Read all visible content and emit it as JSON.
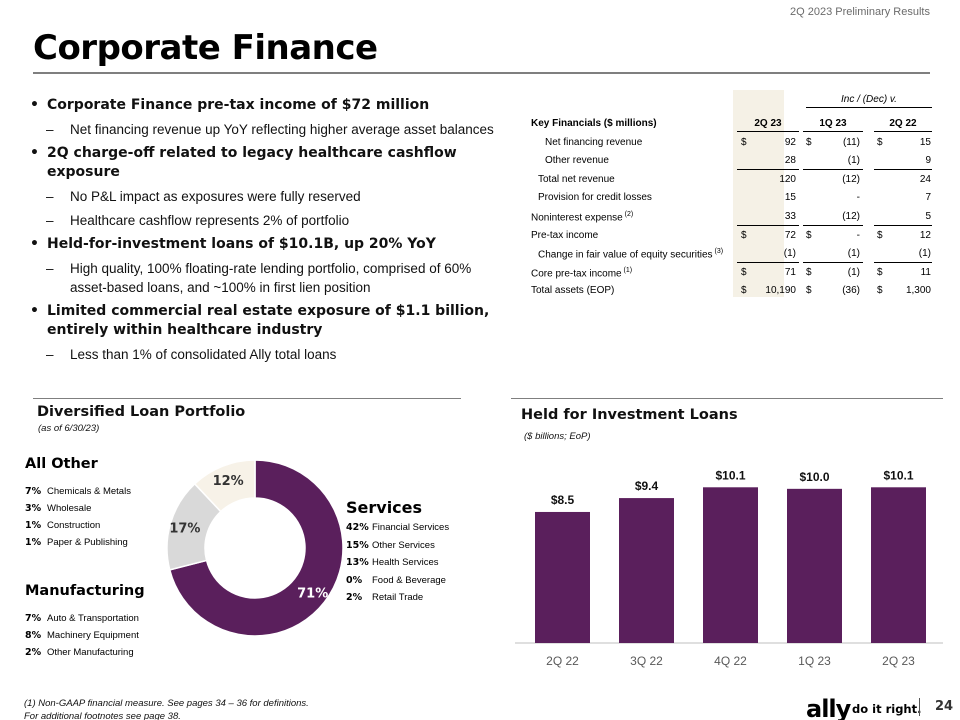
{
  "header": {
    "deck_label": "2Q 2023 Preliminary Results",
    "title": "Corporate Finance"
  },
  "bullets": [
    {
      "level": 1,
      "text": "Corporate Finance pre-tax income of $72 million"
    },
    {
      "level": 2,
      "text": "Net financing revenue up YoY reflecting higher average asset balances"
    },
    {
      "level": 1,
      "text": "2Q charge-off related to legacy healthcare cashflow exposure"
    },
    {
      "level": 2,
      "text": "No P&L impact as exposures were fully reserved"
    },
    {
      "level": 2,
      "text": "Healthcare cashflow represents 2% of portfolio"
    },
    {
      "level": 1,
      "text": "Held-for-investment loans of $10.1B, up 20% YoY"
    },
    {
      "level": 2,
      "text": "High quality, 100% floating-rate lending portfolio, comprised of 60% asset-based loans, and ~100% in first lien position"
    },
    {
      "level": 1,
      "text": "Limited commercial real estate exposure of $1.1 billion, entirely within healthcare industry"
    },
    {
      "level": 2,
      "text": "Less than 1% of consolidated Ally total loans"
    }
  ],
  "table": {
    "inc_dec_label": "Inc / (Dec) v.",
    "header": {
      "label": "Key Financials ($ millions)",
      "cols": [
        "2Q 23",
        "1Q 23",
        "2Q 22"
      ]
    },
    "rows": [
      {
        "label": "Net financing revenue",
        "sup": "",
        "indent": 2,
        "vals": [
          {
            "d": "$",
            "v": "92"
          },
          {
            "d": "$",
            "v": "(11)"
          },
          {
            "d": "$",
            "v": "15"
          }
        ]
      },
      {
        "label": "Other revenue",
        "sup": "",
        "indent": 2,
        "ul": true,
        "vals": [
          {
            "d": "",
            "v": "28"
          },
          {
            "d": "",
            "v": "(1)"
          },
          {
            "d": "",
            "v": "9"
          }
        ]
      },
      {
        "label": "Total net revenue",
        "sup": "",
        "indent": 1,
        "vals": [
          {
            "d": "",
            "v": "120"
          },
          {
            "d": "",
            "v": "(12)"
          },
          {
            "d": "",
            "v": "24"
          }
        ]
      },
      {
        "label": "Provision for credit losses",
        "sup": "",
        "indent": 1,
        "vals": [
          {
            "d": "",
            "v": "15"
          },
          {
            "d": "",
            "v": "-"
          },
          {
            "d": "",
            "v": "7"
          }
        ]
      },
      {
        "label": "Noninterest expense",
        "sup": "(2)",
        "indent": 0,
        "ul": true,
        "vals": [
          {
            "d": "",
            "v": "33"
          },
          {
            "d": "",
            "v": "(12)"
          },
          {
            "d": "",
            "v": "5"
          }
        ]
      },
      {
        "label": "Pre-tax income",
        "sup": "",
        "indent": 0,
        "vals": [
          {
            "d": "$",
            "v": "72"
          },
          {
            "d": "$",
            "v": "-"
          },
          {
            "d": "$",
            "v": "12"
          }
        ]
      },
      {
        "label": "Change in fair value of equity securities",
        "sup": "(3)",
        "indent": 1,
        "ul": true,
        "vals": [
          {
            "d": "",
            "v": "(1)"
          },
          {
            "d": "",
            "v": "(1)"
          },
          {
            "d": "",
            "v": "(1)"
          }
        ]
      },
      {
        "label": "Core pre-tax income",
        "sup": "(1)",
        "indent": 0,
        "vals": [
          {
            "d": "$",
            "v": "71"
          },
          {
            "d": "$",
            "v": "(1)"
          },
          {
            "d": "$",
            "v": "11"
          }
        ]
      },
      {
        "label": "Total assets (EOP)",
        "sup": "",
        "indent": 0,
        "vals": [
          {
            "d": "$",
            "v": "10,190"
          },
          {
            "d": "$",
            "v": "(36)"
          },
          {
            "d": "$",
            "v": "1,300"
          }
        ]
      }
    ]
  },
  "portfolio": {
    "title": "Diversified Loan Portfolio",
    "subtitle": "(as of 6/30/23)",
    "donut_labels": [
      "71%",
      "17%",
      "12%"
    ],
    "groups": {
      "all_other": {
        "title": "All Other",
        "items": [
          {
            "pct": "7%",
            "label": "Chemicals & Metals"
          },
          {
            "pct": "3%",
            "label": "Wholesale"
          },
          {
            "pct": "1%",
            "label": "Construction"
          },
          {
            "pct": "1%",
            "label": "Paper & Publishing"
          }
        ]
      },
      "manufacturing": {
        "title": "Manufacturing",
        "items": [
          {
            "pct": "7%",
            "label": "Auto & Transportation"
          },
          {
            "pct": "8%",
            "label": "Machinery Equipment"
          },
          {
            "pct": "2%",
            "label": "Other Manufacturing"
          }
        ]
      },
      "services": {
        "title": "Services",
        "items": [
          {
            "pct": "42%",
            "label": "Financial Services"
          },
          {
            "pct": "15%",
            "label": "Other Services"
          },
          {
            "pct": "13%",
            "label": "Health Services"
          },
          {
            "pct": "0%",
            "label": "Food & Beverage"
          },
          {
            "pct": "2%",
            "label": "Retail Trade"
          }
        ]
      }
    }
  },
  "chart_data": [
    {
      "type": "pie",
      "title": "Diversified Loan Portfolio",
      "subtitle": "(as of 6/30/23)",
      "categories": [
        "Services",
        "Manufacturing",
        "All Other"
      ],
      "values": [
        71,
        17,
        12
      ]
    },
    {
      "type": "bar",
      "title": "Held for Investment Loans",
      "subtitle": "($ billions; EoP)",
      "categories": [
        "2Q 22",
        "3Q 22",
        "4Q 22",
        "1Q 23",
        "2Q 23"
      ],
      "values": [
        8.5,
        9.4,
        10.1,
        10.0,
        10.1
      ],
      "data_labels": [
        "$8.5",
        "$9.4",
        "$10.1",
        "$10.0",
        "$10.1"
      ],
      "ylim": [
        0,
        12
      ],
      "grid": false
    }
  ],
  "footer": {
    "note1": "(1)     Non-GAAP financial measure. See pages 34 – 36 for definitions.",
    "note2": "For additional footnotes see page 38."
  },
  "brand": {
    "logo": "ally",
    "tagline": "do it right.",
    "page_number": "24",
    "colors": {
      "purple": "#5a1f5c",
      "gray": "#d9d9d9",
      "cream": "#f7f2e8"
    }
  }
}
